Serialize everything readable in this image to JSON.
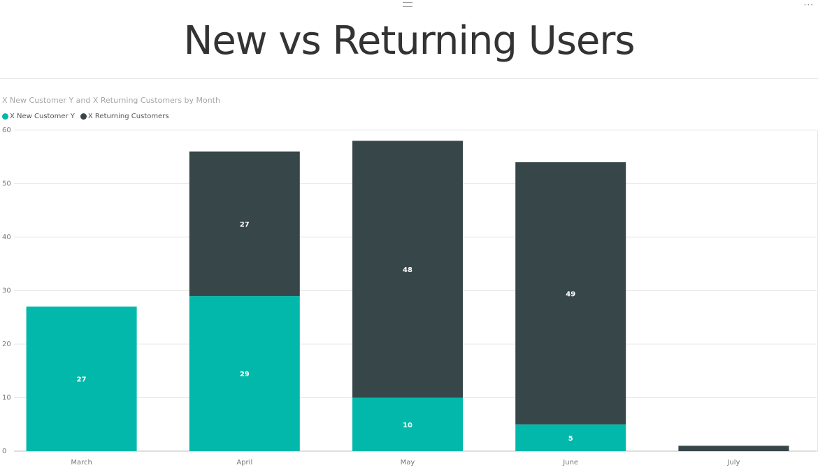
{
  "page": {
    "title": "New vs Returning Users"
  },
  "chart_data": {
    "type": "bar",
    "stacked": true,
    "title": "X New Customer Y and X Returning Customers by Month",
    "xlabel": "",
    "ylabel": "",
    "categories": [
      "March",
      "April",
      "May",
      "June",
      "July"
    ],
    "series": [
      {
        "name": "X New Customer Y",
        "color": "#01b8aa",
        "values": [
          27,
          29,
          10,
          5,
          0
        ]
      },
      {
        "name": "X Returning Customers",
        "color": "#374649",
        "values": [
          0,
          27,
          48,
          49,
          1
        ]
      }
    ],
    "data_labels": [
      [
        27,
        29,
        10,
        5,
        null
      ],
      [
        null,
        27,
        48,
        49,
        null
      ]
    ],
    "ylim": [
      0,
      60
    ],
    "yticks": [
      0,
      10,
      20,
      30,
      40,
      50,
      60
    ],
    "grid": true,
    "legend_position": "top-left"
  }
}
